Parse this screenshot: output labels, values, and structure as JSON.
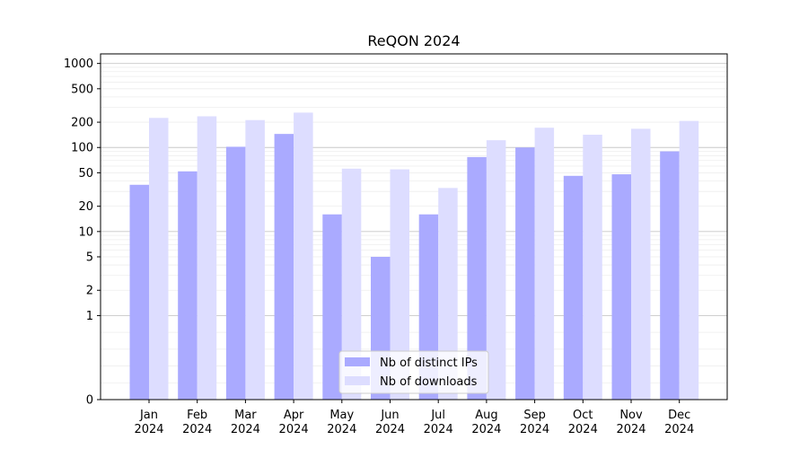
{
  "chart_data": {
    "type": "bar",
    "title": "ReQON 2024",
    "xlabel": "",
    "ylabel": "",
    "yscale": "symlog",
    "ylim": [
      0,
      1300
    ],
    "yticks": [
      0,
      1,
      2,
      5,
      10,
      20,
      50,
      100,
      200,
      500,
      1000
    ],
    "grid": "horizontal",
    "legend_position": "bottom-center",
    "categories": [
      {
        "month": "Jan",
        "year": "2024"
      },
      {
        "month": "Feb",
        "year": "2024"
      },
      {
        "month": "Mar",
        "year": "2024"
      },
      {
        "month": "Apr",
        "year": "2024"
      },
      {
        "month": "May",
        "year": "2024"
      },
      {
        "month": "Jun",
        "year": "2024"
      },
      {
        "month": "Jul",
        "year": "2024"
      },
      {
        "month": "Aug",
        "year": "2024"
      },
      {
        "month": "Sep",
        "year": "2024"
      },
      {
        "month": "Oct",
        "year": "2024"
      },
      {
        "month": "Nov",
        "year": "2024"
      },
      {
        "month": "Dec",
        "year": "2024"
      }
    ],
    "series": [
      {
        "name": "Nb of distinct IPs",
        "color": "#aaaaff",
        "values": [
          36,
          52,
          102,
          145,
          16,
          5,
          16,
          77,
          100,
          46,
          48,
          90
        ]
      },
      {
        "name": "Nb of downloads",
        "color": "#ddddff",
        "values": [
          225,
          235,
          212,
          260,
          56,
          55,
          33,
          122,
          172,
          142,
          167,
          207
        ]
      }
    ]
  }
}
